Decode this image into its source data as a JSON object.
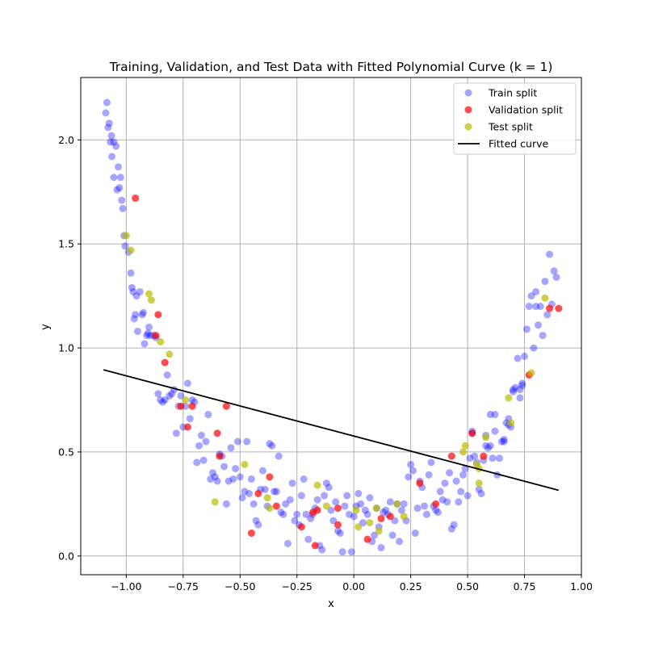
{
  "chart_data": {
    "type": "scatter",
    "title": "Training, Validation, and Test Data with Fitted Polynomial Curve (k = 1)",
    "xlabel": "x",
    "ylabel": "y",
    "xlim": [
      -1.2,
      1.0
    ],
    "ylim": [
      -0.09,
      2.3
    ],
    "grid": true,
    "legend_position": "top-right",
    "x_ticks": [
      -1.0,
      -0.75,
      -0.5,
      -0.25,
      0.0,
      0.25,
      0.5,
      0.75,
      1.0
    ],
    "x_tick_labels": [
      "−1.00",
      "−0.75",
      "−0.50",
      "−0.25",
      "0.00",
      "0.25",
      "0.50",
      "0.75",
      "1.00"
    ],
    "y_ticks": [
      0.0,
      0.5,
      1.0,
      1.5,
      2.0
    ],
    "y_tick_labels": [
      "0.0",
      "0.5",
      "1.0",
      "1.5",
      "2.0"
    ],
    "series": [
      {
        "name": "Train split",
        "kind": "scatter",
        "color": "#0000ff",
        "alpha": 0.35,
        "points": [
          [
            -1.09,
            2.13
          ],
          [
            -1.085,
            2.18
          ],
          [
            -1.08,
            2.06
          ],
          [
            -1.075,
            2.08
          ],
          [
            -1.07,
            1.99
          ],
          [
            -1.065,
            2.02
          ],
          [
            -1.063,
            1.92
          ],
          [
            -1.055,
            1.99
          ],
          [
            -1.055,
            1.82
          ],
          [
            -1.045,
            1.97
          ],
          [
            -1.04,
            1.76
          ],
          [
            -1.035,
            1.87
          ],
          [
            -1.03,
            1.77
          ],
          [
            -1.025,
            1.82
          ],
          [
            -1.02,
            1.71
          ],
          [
            -1.015,
            1.67
          ],
          [
            -1.01,
            1.54
          ],
          [
            -1.005,
            1.49
          ],
          [
            -0.99,
            1.46
          ],
          [
            -0.98,
            1.36
          ],
          [
            -0.975,
            1.29
          ],
          [
            -0.97,
            1.27
          ],
          [
            -0.965,
            1.14
          ],
          [
            -0.96,
            1.16
          ],
          [
            -0.955,
            1.25
          ],
          [
            -0.95,
            1.08
          ],
          [
            -0.94,
            1.27
          ],
          [
            -0.93,
            1.16
          ],
          [
            -0.925,
            1.17
          ],
          [
            -0.92,
            1.02
          ],
          [
            -0.91,
            1.06
          ],
          [
            -0.905,
            1.07
          ],
          [
            -0.9,
            1.1
          ],
          [
            -0.895,
            1.06
          ],
          [
            -0.88,
            1.06
          ],
          [
            -0.87,
            1.05
          ],
          [
            -0.86,
            0.78
          ],
          [
            -0.85,
            0.75
          ],
          [
            -0.84,
            0.74
          ],
          [
            -0.83,
            0.75
          ],
          [
            -0.82,
            0.87
          ],
          [
            -0.81,
            0.77
          ],
          [
            -0.8,
            0.78
          ],
          [
            -0.79,
            0.8
          ],
          [
            -0.78,
            0.59
          ],
          [
            -0.77,
            0.72
          ],
          [
            -0.76,
            0.77
          ],
          [
            -0.75,
            0.62
          ],
          [
            -0.74,
            0.72
          ],
          [
            -0.73,
            0.83
          ],
          [
            -0.72,
            0.66
          ],
          [
            -0.71,
            0.75
          ],
          [
            -0.7,
            0.74
          ],
          [
            -0.69,
            0.45
          ],
          [
            -0.68,
            0.53
          ],
          [
            -0.67,
            0.58
          ],
          [
            -0.66,
            0.46
          ],
          [
            -0.65,
            0.55
          ],
          [
            -0.64,
            0.68
          ],
          [
            -0.63,
            0.37
          ],
          [
            -0.62,
            0.4
          ],
          [
            -0.61,
            0.38
          ],
          [
            -0.6,
            0.36
          ],
          [
            -0.59,
            0.49
          ],
          [
            -0.58,
            0.48
          ],
          [
            -0.57,
            0.43
          ],
          [
            -0.56,
            0.25
          ],
          [
            -0.55,
            0.36
          ],
          [
            -0.54,
            0.52
          ],
          [
            -0.53,
            0.37
          ],
          [
            -0.52,
            0.42
          ],
          [
            -0.51,
            0.55
          ],
          [
            -0.5,
            0.38
          ],
          [
            -0.49,
            0.28
          ],
          [
            -0.48,
            0.31
          ],
          [
            -0.47,
            0.55
          ],
          [
            -0.46,
            0.3
          ],
          [
            -0.45,
            0.37
          ],
          [
            -0.44,
            0.25
          ],
          [
            -0.43,
            0.17
          ],
          [
            -0.42,
            0.15
          ],
          [
            -0.41,
            0.32
          ],
          [
            -0.4,
            0.41
          ],
          [
            -0.39,
            0.32
          ],
          [
            -0.38,
            0.24
          ],
          [
            -0.37,
            0.54
          ],
          [
            -0.36,
            0.53
          ],
          [
            -0.35,
            0.31
          ],
          [
            -0.34,
            0.31
          ],
          [
            -0.33,
            0.48
          ],
          [
            -0.32,
            0.21
          ],
          [
            -0.31,
            0.2
          ],
          [
            -0.3,
            0.25
          ],
          [
            -0.29,
            0.06
          ],
          [
            -0.28,
            0.27
          ],
          [
            -0.27,
            0.35
          ],
          [
            -0.26,
            0.17
          ],
          [
            -0.25,
            0.2
          ],
          [
            -0.24,
            0.15
          ],
          [
            -0.23,
            0.29
          ],
          [
            -0.22,
            0.37
          ],
          [
            -0.21,
            0.2
          ],
          [
            -0.2,
            0.08
          ],
          [
            -0.19,
            0.18
          ],
          [
            -0.18,
            0.2
          ],
          [
            -0.17,
            0.23
          ],
          [
            -0.16,
            0.27
          ],
          [
            -0.15,
            0.05
          ],
          [
            -0.14,
            0.03
          ],
          [
            -0.13,
            0.29
          ],
          [
            -0.12,
            0.35
          ],
          [
            -0.11,
            0.33
          ],
          [
            -0.1,
            0.22
          ],
          [
            -0.09,
            0.17
          ],
          [
            -0.08,
            0.26
          ],
          [
            -0.07,
            0.12
          ],
          [
            -0.06,
            0.11
          ],
          [
            -0.05,
            0.02
          ],
          [
            -0.04,
            0.24
          ],
          [
            -0.03,
            0.29
          ],
          [
            -0.02,
            0.2
          ],
          [
            -0.01,
            0.02
          ],
          [
            0.0,
            0.19
          ],
          [
            0.01,
            0.24
          ],
          [
            0.02,
            0.3
          ],
          [
            0.03,
            0.25
          ],
          [
            0.04,
            0.16
          ],
          [
            0.05,
            0.22
          ],
          [
            0.06,
            0.2
          ],
          [
            0.07,
            0.28
          ],
          [
            0.08,
            0.07
          ],
          [
            0.09,
            0.1
          ],
          [
            0.1,
            0.23
          ],
          [
            0.11,
            0.14
          ],
          [
            0.12,
            0.04
          ],
          [
            0.13,
            0.21
          ],
          [
            0.14,
            0.22
          ],
          [
            0.15,
            0.2
          ],
          [
            0.16,
            0.26
          ],
          [
            0.17,
            0.1
          ],
          [
            0.18,
            0.17
          ],
          [
            0.19,
            0.25
          ],
          [
            0.2,
            0.07
          ],
          [
            0.21,
            0.22
          ],
          [
            0.22,
            0.25
          ],
          [
            0.23,
            0.17
          ],
          [
            0.24,
            0.38
          ],
          [
            0.25,
            0.44
          ],
          [
            0.26,
            0.41
          ],
          [
            0.27,
            0.11
          ],
          [
            0.28,
            0.23
          ],
          [
            0.29,
            0.36
          ],
          [
            0.3,
            0.33
          ],
          [
            0.31,
            0.24
          ],
          [
            0.32,
            0.2
          ],
          [
            0.33,
            0.39
          ],
          [
            0.34,
            0.45
          ],
          [
            0.35,
            0.24
          ],
          [
            0.36,
            0.22
          ],
          [
            0.37,
            0.21
          ],
          [
            0.38,
            0.31
          ],
          [
            0.39,
            0.27
          ],
          [
            0.4,
            0.35
          ],
          [
            0.41,
            0.26
          ],
          [
            0.42,
            0.4
          ],
          [
            0.43,
            0.13
          ],
          [
            0.44,
            0.15
          ],
          [
            0.45,
            0.36
          ],
          [
            0.46,
            0.26
          ],
          [
            0.47,
            0.31
          ],
          [
            0.48,
            0.39
          ],
          [
            0.49,
            0.42
          ],
          [
            0.5,
            0.29
          ],
          [
            0.51,
            0.47
          ],
          [
            0.52,
            0.59
          ],
          [
            0.53,
            0.48
          ],
          [
            0.54,
            0.45
          ],
          [
            0.55,
            0.32
          ],
          [
            0.56,
            0.3
          ],
          [
            0.57,
            0.46
          ],
          [
            0.58,
            0.58
          ],
          [
            0.59,
            0.52
          ],
          [
            0.6,
            0.53
          ],
          [
            0.61,
            0.47
          ],
          [
            0.62,
            0.68
          ],
          [
            0.63,
            0.39
          ],
          [
            0.64,
            0.47
          ],
          [
            0.65,
            0.55
          ],
          [
            0.66,
            0.56
          ],
          [
            0.67,
            0.64
          ],
          [
            0.68,
            0.66
          ],
          [
            0.69,
            0.62
          ],
          [
            0.7,
            0.79
          ],
          [
            0.71,
            0.81
          ],
          [
            0.72,
            0.95
          ],
          [
            0.73,
            0.76
          ],
          [
            0.74,
            0.83
          ],
          [
            0.75,
            0.96
          ],
          [
            0.76,
            1.09
          ],
          [
            0.77,
            1.2
          ],
          [
            0.78,
            1.25
          ],
          [
            0.79,
            1.0
          ],
          [
            0.8,
            1.27
          ],
          [
            0.81,
            1.11
          ],
          [
            0.82,
            1.2
          ],
          [
            0.83,
            1.06
          ],
          [
            0.84,
            1.32
          ],
          [
            0.85,
            1.16
          ],
          [
            0.86,
            1.45
          ],
          [
            0.87,
            1.21
          ],
          [
            0.88,
            1.37
          ],
          [
            0.89,
            1.34
          ],
          [
            0.6,
            0.68
          ],
          [
            0.58,
            0.53
          ],
          [
            0.66,
            0.55
          ],
          [
            0.7,
            0.8
          ],
          [
            0.73,
            0.8
          ],
          [
            0.8,
            1.2
          ],
          [
            0.74,
            0.82
          ],
          [
            0.68,
            0.63
          ],
          [
            0.62,
            0.6
          ],
          [
            0.52,
            0.6
          ]
        ]
      },
      {
        "name": "Validation split",
        "kind": "scatter",
        "color": "#ff0000",
        "alpha": 0.7,
        "points": [
          [
            -0.96,
            1.72
          ],
          [
            -0.86,
            1.16
          ],
          [
            -0.87,
            1.06
          ],
          [
            -0.83,
            0.93
          ],
          [
            -0.76,
            0.72
          ],
          [
            -0.73,
            0.62
          ],
          [
            -0.71,
            0.72
          ],
          [
            -0.6,
            0.59
          ],
          [
            -0.59,
            0.48
          ],
          [
            -0.56,
            0.72
          ],
          [
            -0.45,
            0.11
          ],
          [
            -0.42,
            0.3
          ],
          [
            -0.37,
            0.38
          ],
          [
            -0.34,
            0.24
          ],
          [
            -0.23,
            0.14
          ],
          [
            -0.18,
            0.21
          ],
          [
            -0.17,
            0.05
          ],
          [
            -0.16,
            0.22
          ],
          [
            -0.07,
            0.23
          ],
          [
            -0.07,
            0.15
          ],
          [
            0.06,
            0.08
          ],
          [
            0.12,
            0.18
          ],
          [
            0.16,
            0.19
          ],
          [
            0.29,
            0.35
          ],
          [
            0.36,
            0.25
          ],
          [
            0.43,
            0.48
          ],
          [
            0.52,
            0.59
          ],
          [
            0.57,
            0.48
          ],
          [
            0.77,
            0.87
          ],
          [
            0.86,
            1.19
          ],
          [
            0.9,
            1.19
          ]
        ]
      },
      {
        "name": "Test split",
        "kind": "scatter",
        "color": "#bbbb00",
        "alpha": 0.7,
        "points": [
          [
            -1.0,
            1.54
          ],
          [
            -0.98,
            1.47
          ],
          [
            -0.9,
            1.26
          ],
          [
            -0.89,
            1.23
          ],
          [
            -0.85,
            1.03
          ],
          [
            -0.81,
            0.97
          ],
          [
            -0.74,
            0.75
          ],
          [
            -0.61,
            0.26
          ],
          [
            -0.48,
            0.44
          ],
          [
            -0.38,
            0.28
          ],
          [
            -0.37,
            0.23
          ],
          [
            -0.16,
            0.34
          ],
          [
            -0.12,
            0.24
          ],
          [
            0.01,
            0.22
          ],
          [
            0.02,
            0.14
          ],
          [
            0.07,
            0.16
          ],
          [
            0.1,
            0.23
          ],
          [
            0.11,
            0.12
          ],
          [
            0.19,
            0.25
          ],
          [
            0.22,
            0.19
          ],
          [
            0.48,
            0.5
          ],
          [
            0.49,
            0.53
          ],
          [
            0.54,
            0.44
          ],
          [
            0.55,
            0.42
          ],
          [
            0.55,
            0.35
          ],
          [
            0.58,
            0.57
          ],
          [
            0.68,
            0.76
          ],
          [
            0.69,
            0.64
          ],
          [
            0.78,
            0.88
          ],
          [
            0.84,
            1.24
          ]
        ]
      },
      {
        "name": "Fitted curve",
        "kind": "line",
        "color": "#000000",
        "points": [
          [
            -1.1,
            0.895
          ],
          [
            0.9,
            0.316
          ]
        ]
      }
    ]
  }
}
